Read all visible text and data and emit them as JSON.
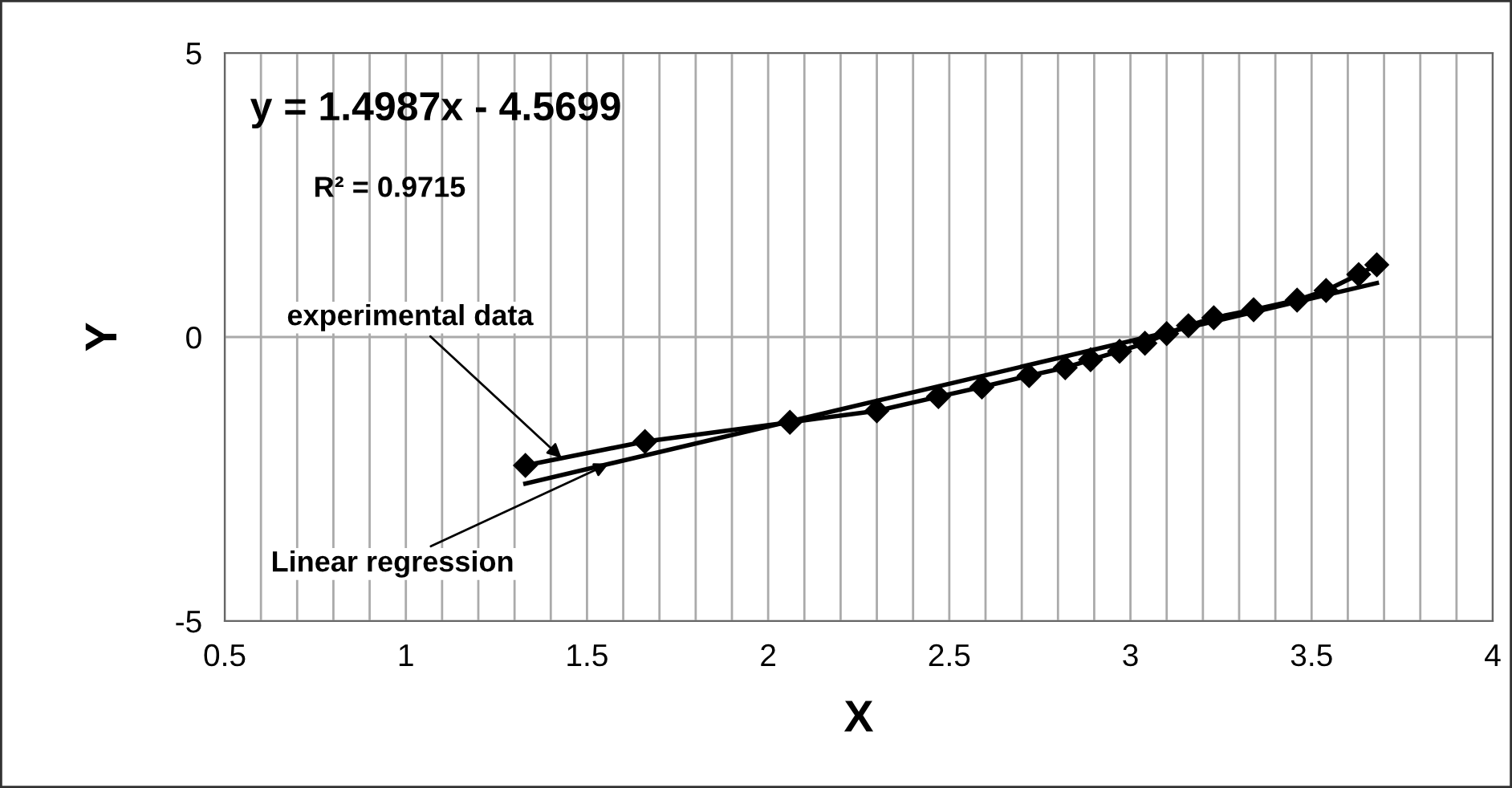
{
  "chart_data": {
    "type": "line",
    "xlabel": "X",
    "ylabel": "Y",
    "xlim": [
      0.5,
      4
    ],
    "ylim": [
      -5,
      5
    ],
    "xticks": [
      0.5,
      {
        "value": 0.6,
        "label": null
      },
      {
        "value": 0.7,
        "label": null
      },
      {
        "value": 0.8,
        "label": null
      },
      {
        "value": 0.9,
        "label": null
      },
      1,
      {
        "value": 1.1,
        "label": null
      },
      {
        "value": 1.2,
        "label": null
      },
      {
        "value": 1.3,
        "label": null
      },
      {
        "value": 1.4,
        "label": null
      },
      1.5,
      {
        "value": 1.6,
        "label": null
      },
      {
        "value": 1.7,
        "label": null
      },
      {
        "value": 1.8,
        "label": null
      },
      {
        "value": 1.9,
        "label": null
      },
      2,
      {
        "value": 2.1,
        "label": null
      },
      {
        "value": 2.2,
        "label": null
      },
      {
        "value": 2.3,
        "label": null
      },
      {
        "value": 2.4,
        "label": null
      },
      2.5,
      {
        "value": 2.6,
        "label": null
      },
      {
        "value": 2.7,
        "label": null
      },
      {
        "value": 2.8,
        "label": null
      },
      {
        "value": 2.9,
        "label": null
      },
      3,
      {
        "value": 3.1,
        "label": null
      },
      {
        "value": 3.2,
        "label": null
      },
      {
        "value": 3.3,
        "label": null
      },
      {
        "value": 3.4,
        "label": null
      },
      3.5,
      {
        "value": 3.6,
        "label": null
      },
      {
        "value": 3.7,
        "label": null
      },
      {
        "value": 3.8,
        "label": null
      },
      {
        "value": 3.9,
        "label": null
      },
      4
    ],
    "yticks": [
      -5,
      0,
      5
    ],
    "grid": true,
    "series": [
      {
        "color": "#000000",
        "marker": "diamond",
        "x": [
          1.33,
          1.66,
          2.06,
          2.3,
          2.47,
          2.59,
          2.72,
          2.82,
          2.89,
          2.97,
          3.04,
          3.1,
          3.16,
          3.23,
          3.34,
          3.46,
          3.54,
          3.63,
          3.68
        ],
        "values": [
          -2.26,
          -1.84,
          -1.5,
          -1.3,
          -1.05,
          -0.88,
          -0.68,
          -0.54,
          -0.4,
          -0.25,
          -0.11,
          0.06,
          0.2,
          0.34,
          0.48,
          0.65,
          0.82,
          1.1,
          1.27
        ]
      },
      {
        "color": "#000000",
        "marker": "none",
        "x": [
          1.33,
          3.68
        ],
        "values": [
          -2.58,
          0.95
        ]
      }
    ],
    "annotations": [
      "y = 1.4987x - 4.5699",
      "R² = 0.9715",
      {
        "text": "experimental data",
        "x": 1.43,
        "y": -2.13
      },
      {
        "text": "Linear regression",
        "x": 1.56,
        "y": -2.23
      }
    ]
  }
}
